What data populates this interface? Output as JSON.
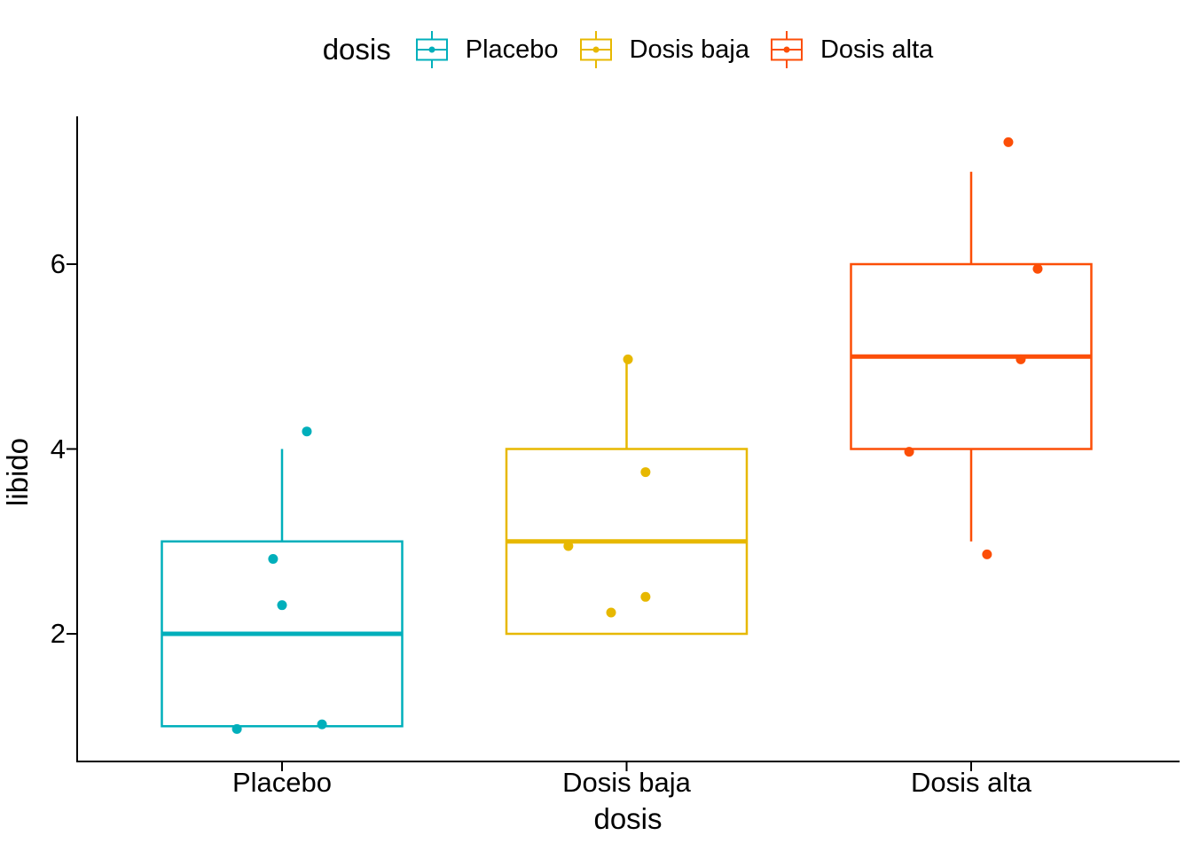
{
  "figure": {
    "background": "#FFFFFF",
    "text_color": "#000000",
    "axis_color": "#000000",
    "legend": {
      "title": "dosis",
      "items": [
        {
          "label": "Placebo",
          "color": "#00AFBB"
        },
        {
          "label": "Dosis baja",
          "color": "#E7B800"
        },
        {
          "label": "Dosis alta",
          "color": "#FC4E07"
        }
      ]
    },
    "x_axis": {
      "title": "dosis"
    },
    "y_axis": {
      "title": "libido"
    }
  },
  "chart_data": {
    "type": "boxplot",
    "title": "",
    "xlabel": "dosis",
    "ylabel": "libido",
    "categories": [
      "Placebo",
      "Dosis baja",
      "Dosis alta"
    ],
    "colors": [
      "#00AFBB",
      "#E7B800",
      "#FC4E07"
    ],
    "y_ticks": [
      2,
      4,
      6
    ],
    "ylim": [
      0.65,
      7.6
    ],
    "grid": false,
    "legend_position": "top",
    "box_fill": "#FFFFFF",
    "series": [
      {
        "name": "Placebo",
        "color": "#00AFBB",
        "q1": 1,
        "median": 2,
        "q3": 3,
        "whisker_low": 1,
        "whisker_high": 4,
        "points": [
          {
            "dx": 0.072,
            "y": 4.19
          },
          {
            "dx": -0.026,
            "y": 2.81
          },
          {
            "dx": 0.0,
            "y": 2.31
          },
          {
            "dx": -0.131,
            "y": 0.97
          },
          {
            "dx": 0.116,
            "y": 1.02
          }
        ]
      },
      {
        "name": "Dosis baja",
        "color": "#E7B800",
        "q1": 2,
        "median": 3,
        "q3": 4,
        "whisker_low": 2,
        "whisker_high": 5,
        "points": [
          {
            "dx": 0.004,
            "y": 4.97
          },
          {
            "dx": 0.055,
            "y": 3.75
          },
          {
            "dx": -0.169,
            "y": 2.95
          },
          {
            "dx": 0.055,
            "y": 2.4
          },
          {
            "dx": -0.045,
            "y": 2.23
          }
        ]
      },
      {
        "name": "Dosis alta",
        "color": "#FC4E07",
        "q1": 4,
        "median": 5,
        "q3": 6,
        "whisker_low": 3,
        "whisker_high": 7,
        "points": [
          {
            "dx": 0.108,
            "y": 7.32
          },
          {
            "dx": 0.193,
            "y": 5.95
          },
          {
            "dx": 0.144,
            "y": 4.97
          },
          {
            "dx": -0.18,
            "y": 3.97
          },
          {
            "dx": 0.046,
            "y": 2.86
          }
        ]
      }
    ]
  }
}
